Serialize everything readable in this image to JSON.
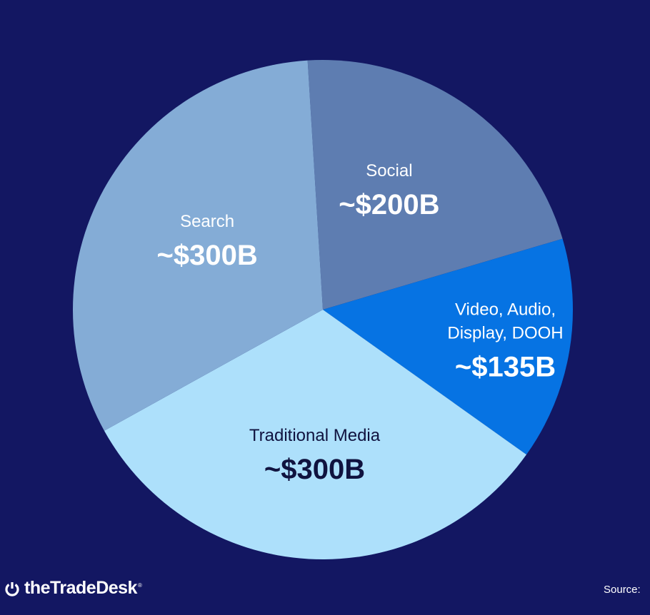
{
  "chart_data": {
    "type": "pie",
    "slices": [
      {
        "label": [
          "Social"
        ],
        "value_label": "~$200B",
        "value": 200,
        "color": "#5e7db1",
        "text_color": "#ffffff",
        "dark": false
      },
      {
        "label": [
          "Video, Audio,",
          "Display, DOOH"
        ],
        "value_label": "~$135B",
        "value": 135,
        "color": "#0673e3",
        "text_color": "#ffffff",
        "dark": false
      },
      {
        "label": [
          "Traditional Media"
        ],
        "value_label": "~$300B",
        "value": 300,
        "color": "#ade0fb",
        "text_color": "#10133f",
        "dark": true
      },
      {
        "label": [
          "Search"
        ],
        "value_label": "~$300B",
        "value": 300,
        "color": "#84acd6",
        "text_color": "#ffffff",
        "dark": false
      }
    ]
  },
  "footer": {
    "logo_text": "theTradeDesk",
    "logo_mark": "®",
    "source_label": "Source:"
  }
}
